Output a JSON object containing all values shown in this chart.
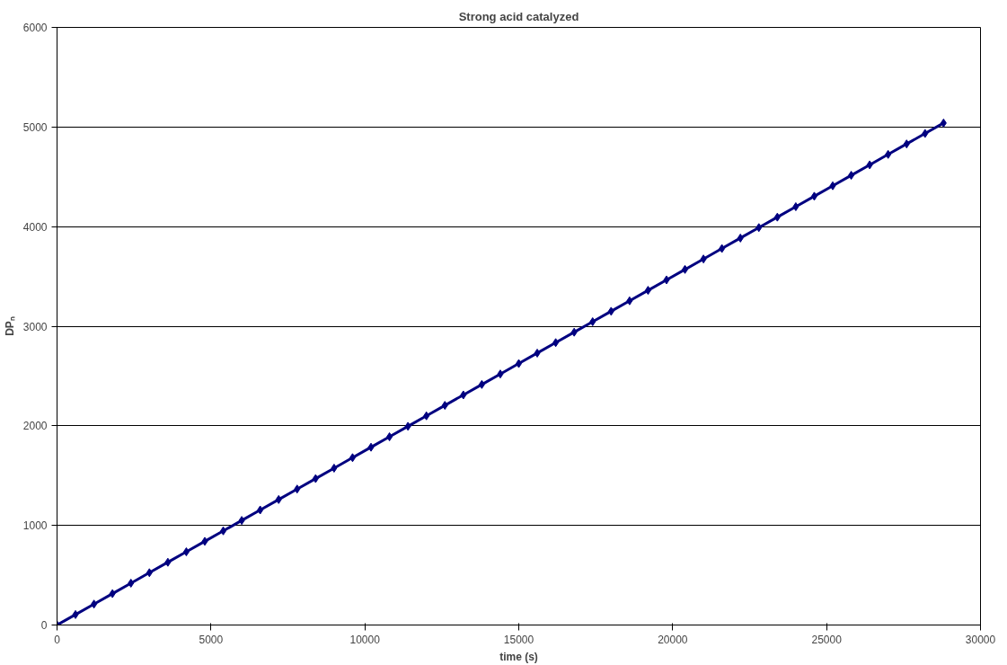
{
  "chart_data": {
    "type": "line",
    "title": "Strong acid catalyzed",
    "xlabel": "time (s)",
    "ylabel": "DPₙ",
    "x": [
      0,
      600,
      1200,
      1800,
      2400,
      3000,
      3600,
      4200,
      4800,
      5400,
      6000,
      6600,
      7200,
      7800,
      8400,
      9000,
      9600,
      10200,
      10800,
      11400,
      12000,
      12600,
      13200,
      13800,
      14400,
      15000,
      15600,
      16200,
      16800,
      17400,
      18000,
      18600,
      19200,
      19800,
      20400,
      21000,
      21600,
      22200,
      22800,
      23400,
      24000,
      24600,
      25200,
      25800,
      26400,
      27000,
      27600,
      28200,
      28800
    ],
    "series": [
      {
        "color": "#000080",
        "values": [
          0,
          105,
          210,
          315,
          420,
          525,
          630,
          735,
          840,
          945,
          1050,
          1155,
          1260,
          1365,
          1470,
          1575,
          1680,
          1785,
          1890,
          1995,
          2100,
          2205,
          2310,
          2415,
          2520,
          2625,
          2730,
          2835,
          2940,
          3045,
          3150,
          3255,
          3360,
          3465,
          3570,
          3675,
          3780,
          3885,
          3990,
          4095,
          4200,
          4305,
          4410,
          4515,
          4620,
          4725,
          4830,
          4935,
          5040
        ]
      }
    ],
    "xlim": [
      0,
      30000
    ],
    "xticks": [
      0,
      5000,
      10000,
      15000,
      20000,
      25000,
      30000
    ],
    "ylim": [
      0,
      6000
    ],
    "yticks": [
      0,
      1000,
      2000,
      3000,
      4000,
      5000,
      6000
    ],
    "grid": "y",
    "marker": "diamond",
    "line_style": "solid"
  }
}
